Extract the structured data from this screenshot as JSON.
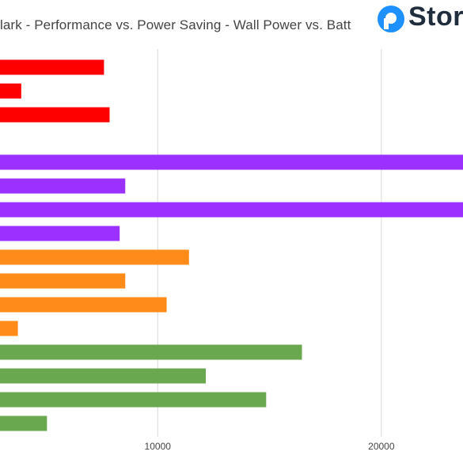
{
  "chart_data": {
    "type": "bar",
    "orientation": "horizontal",
    "title": "lark - Performance vs. Power Saving - Wall Power vs. Batt",
    "x_ticks": [
      10000,
      20000
    ],
    "x_tick_labels": [
      "10000",
      "20000"
    ],
    "xlim": [
      2950,
      23650
    ],
    "grid": true,
    "groups": [
      {
        "color": "#ff0000",
        "values": [
          7600,
          3900,
          7850
        ]
      },
      {
        "color": "#9b30ff",
        "values": [
          23700,
          8550,
          23700,
          8300
        ]
      },
      {
        "color": "#ff8c1a",
        "values": [
          11400,
          8550,
          10400,
          3750
        ]
      },
      {
        "color": "#6aa84f",
        "values": [
          16450,
          12150,
          14850,
          5050
        ]
      }
    ]
  },
  "logo": {
    "text": "Stor",
    "icon": "storage-review-logo-icon",
    "color": "#1e90ff"
  }
}
